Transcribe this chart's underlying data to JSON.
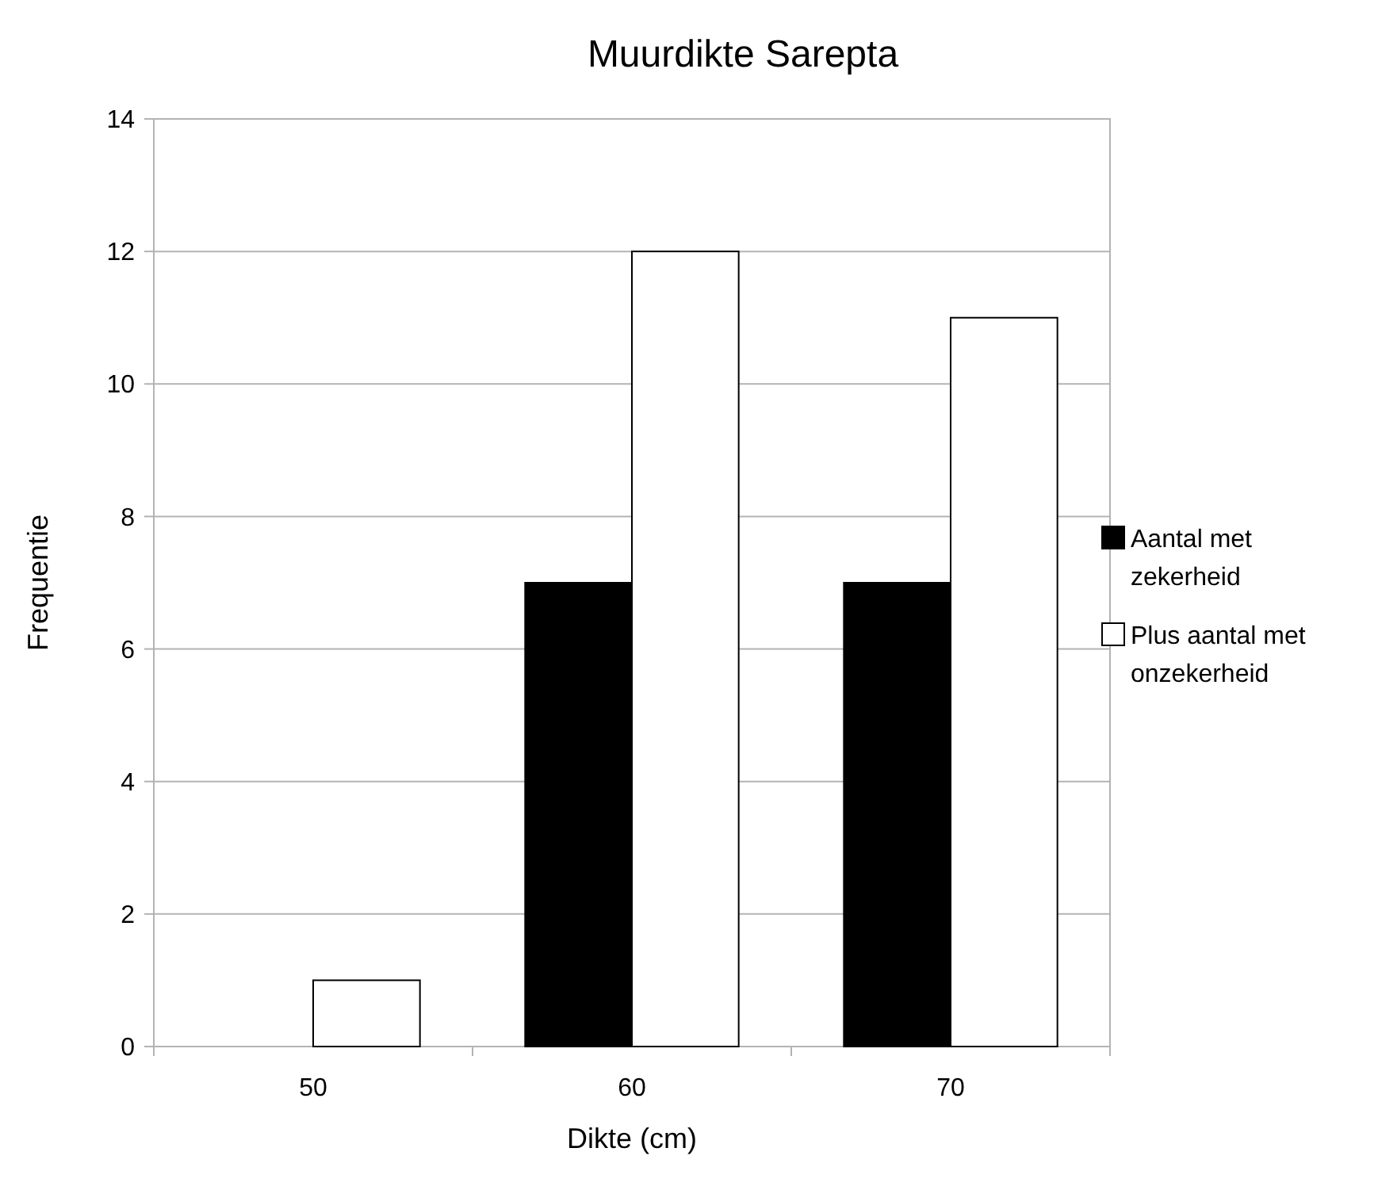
{
  "chart_data": {
    "type": "bar",
    "title": "Muurdikte Sarepta",
    "xlabel": "Dikte (cm)",
    "ylabel": "Frequentie",
    "categories": [
      "50",
      "60",
      "70"
    ],
    "series": [
      {
        "name": "Aantal met zekerheid",
        "color": "#000000",
        "values": [
          0,
          7,
          7
        ]
      },
      {
        "name": "Plus aantal met onzekerheid",
        "color": "#ffffff",
        "values": [
          1,
          12,
          11
        ]
      }
    ],
    "ylim": [
      0,
      14
    ],
    "yticks": [
      0,
      2,
      4,
      6,
      8,
      10,
      12,
      14
    ],
    "grid": "y",
    "legend": "right"
  }
}
